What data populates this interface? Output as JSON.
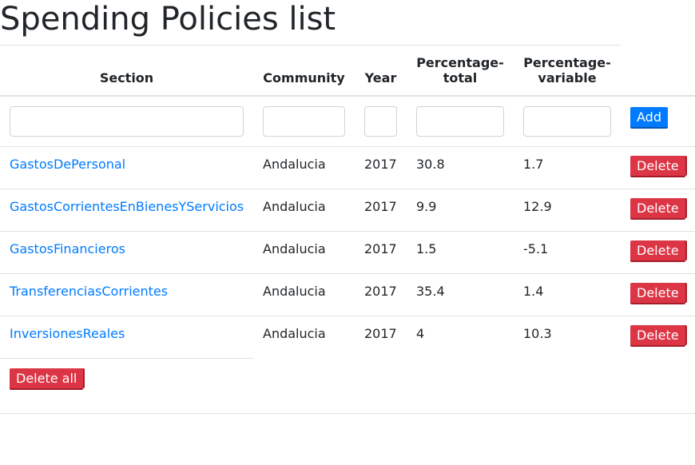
{
  "page": {
    "title": "Spending Policies list"
  },
  "table": {
    "headers": {
      "section": "Section",
      "community": "Community",
      "year": "Year",
      "pct_total": "Percentage-total",
      "pct_variable": "Percentage-variable"
    },
    "add_label": "Add",
    "delete_label": "Delete",
    "delete_all_label": "Delete all",
    "rows": [
      {
        "section": "GastosDePersonal",
        "community": "Andalucia",
        "year": "2017",
        "pct_total": "30.8",
        "pct_variable": "1.7"
      },
      {
        "section": "GastosCorrientesEnBienesYServicios",
        "community": "Andalucia",
        "year": "2017",
        "pct_total": "9.9",
        "pct_variable": "12.9"
      },
      {
        "section": "GastosFinancieros",
        "community": "Andalucia",
        "year": "2017",
        "pct_total": "1.5",
        "pct_variable": "-5.1"
      },
      {
        "section": "TransferenciasCorrientes",
        "community": "Andalucia",
        "year": "2017",
        "pct_total": "35.4",
        "pct_variable": "1.4"
      },
      {
        "section": "InversionesReales",
        "community": "Andalucia",
        "year": "2017",
        "pct_total": "4",
        "pct_variable": "10.3"
      }
    ]
  }
}
